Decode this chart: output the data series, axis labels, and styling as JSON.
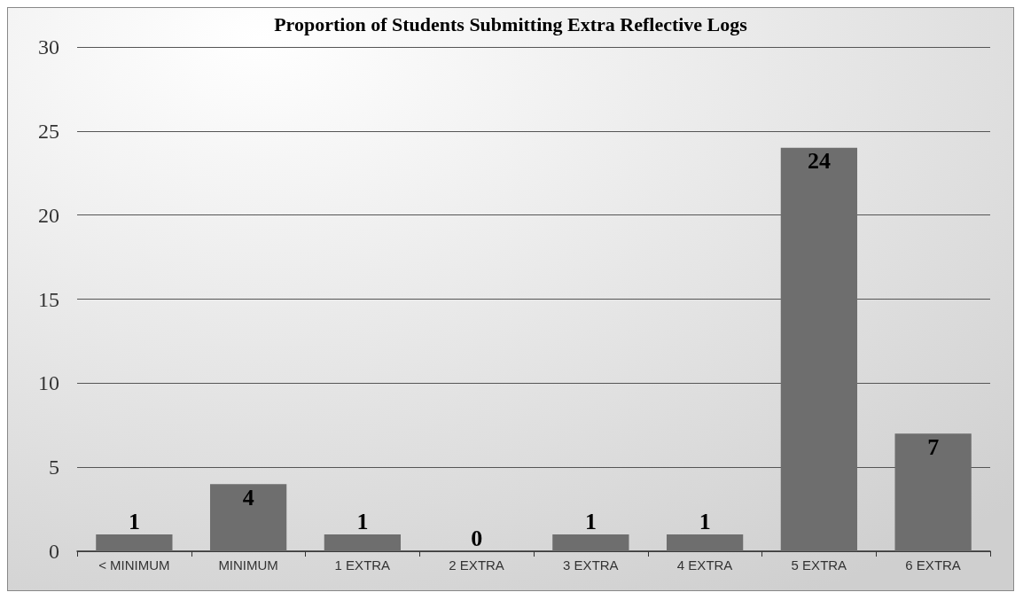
{
  "chart_data": {
    "type": "bar",
    "title": "Proportion of Students Submitting Extra Reflective Logs",
    "categories": [
      "< MINIMUM",
      "MINIMUM",
      "1 EXTRA",
      "2 EXTRA",
      "3 EXTRA",
      "4 EXTRA",
      "5 EXTRA",
      "6 EXTRA"
    ],
    "values": [
      1,
      4,
      1,
      0,
      1,
      1,
      24,
      7
    ],
    "color": "#6e6e6e",
    "ylim": [
      0,
      30
    ],
    "yticks": [
      0,
      5,
      10,
      15,
      20,
      25,
      30
    ],
    "grid": "y",
    "data_labels": true
  }
}
